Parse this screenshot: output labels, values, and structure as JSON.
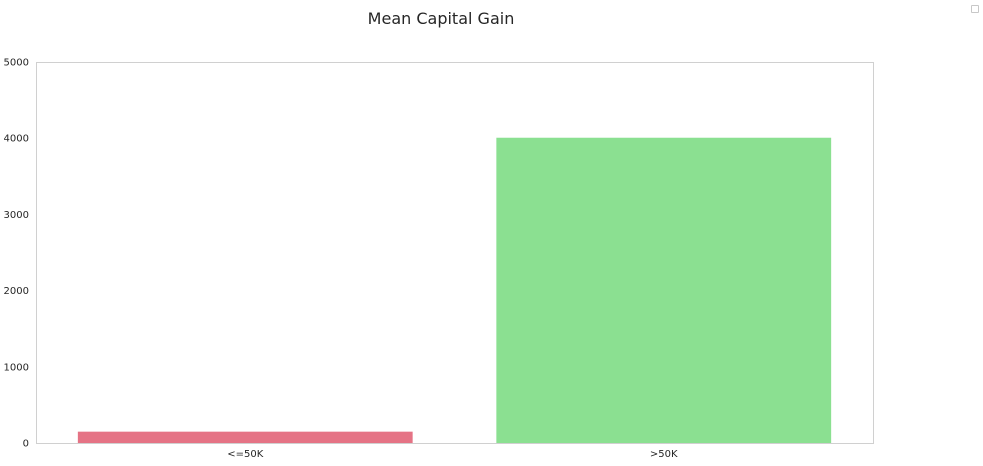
{
  "chart_data": {
    "type": "bar",
    "title": "Mean Capital Gain",
    "xlabel": "",
    "ylabel": "",
    "categories": [
      "<=50K",
      ">50K"
    ],
    "values": [
      148.75,
      4006.14
    ],
    "colors": [
      "#e57385",
      "#8be091"
    ],
    "ylim": [
      0,
      5000
    ],
    "yticks": [
      0,
      1000,
      2000,
      3000,
      4000,
      5000
    ],
    "grid": false,
    "legend": {
      "placement": "upper-right",
      "entries": []
    },
    "frame_color": "#d0d0d0"
  }
}
